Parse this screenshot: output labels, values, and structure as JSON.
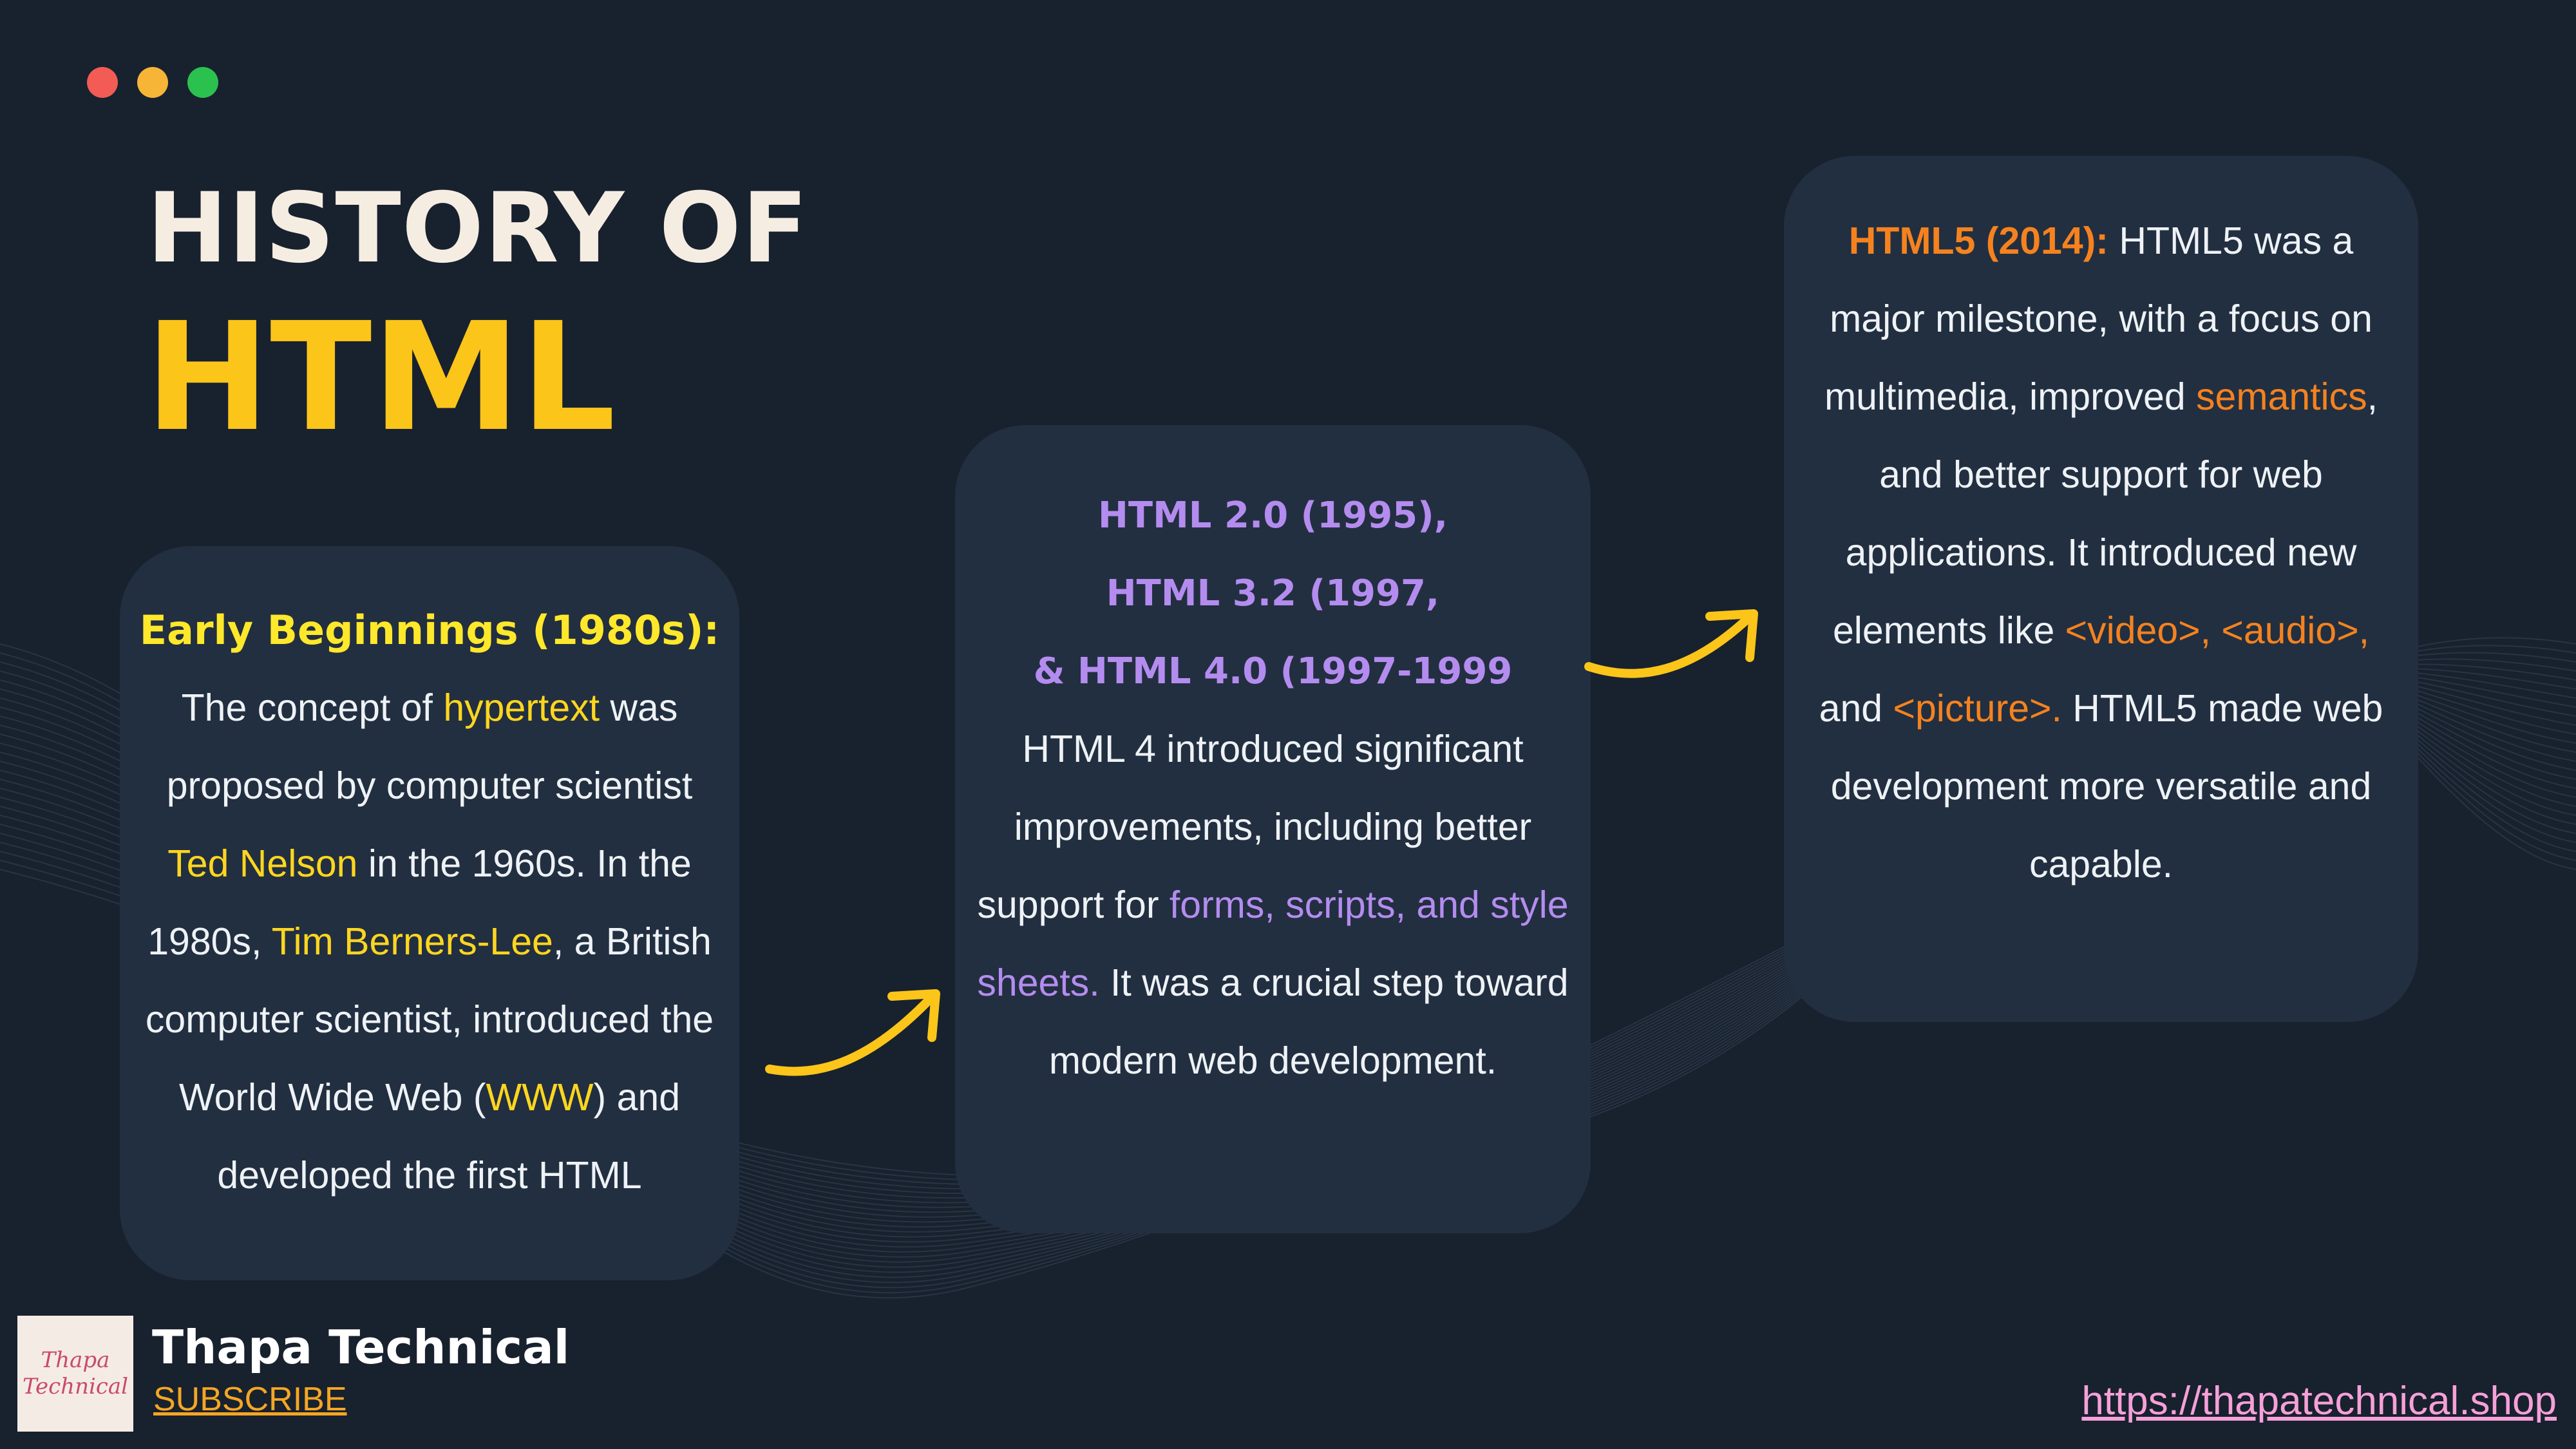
{
  "header": {
    "title_line1": "HISTORY OF",
    "title_line2": "HTML"
  },
  "window_controls": {
    "colors": [
      "#f25c54",
      "#f7b538",
      "#2bc14f"
    ]
  },
  "cards": {
    "early": {
      "heading": "Early Beginnings (1980s):",
      "t1": "The concept of ",
      "h1": "hypertext",
      "t2": " was proposed by computer scientist ",
      "h2": "Ted Nelson",
      "t3": " in the 1960s. In the 1980s, ",
      "h3": "Tim Berners-Lee",
      "t4": ", a British computer scientist, introduced the World Wide Web (",
      "h4": "WWW",
      "t5": ") and developed the first HTML"
    },
    "html4": {
      "heading_line1": "HTML 2.0 (1995),",
      "heading_line2": "HTML 3.2 (1997,",
      "heading_line3": "& HTML 4.0 (1997-1999",
      "t1": "HTML 4 introduced significant improvements, including better support for ",
      "h1": "forms, scripts, and style sheets.",
      "t2": " It was a crucial step toward modern web development."
    },
    "html5": {
      "heading": "HTML5 (2014):",
      "t1": " HTML5 was a major milestone, with a focus on multimedia, improved ",
      "h1": "semantics",
      "t2": ", and better support for web applications. It introduced new elements like ",
      "h2": "<video>, <audio>,",
      "t3": " and ",
      "h3": "<picture>.",
      "t4": " HTML5 made web development more versatile and capable."
    }
  },
  "footer": {
    "brand_name": "Thapa Technical",
    "subscribe_label": "SUBSCRIBE",
    "logo_text_1": "Thapa",
    "logo_text_2": "Technical",
    "website": "https://thapatechnical.shop"
  },
  "icons": {
    "arrows": [
      "arrow-right-curved-icon",
      "arrow-right-curved-icon"
    ],
    "arrow_color": "#fbc51a"
  },
  "colors": {
    "background": "#18212e",
    "card": "#222f40",
    "accent_yellow": "#fbc51a",
    "accent_purple": "#b48cef",
    "accent_orange": "#f5821f",
    "link_pink": "#f5a0d8"
  }
}
